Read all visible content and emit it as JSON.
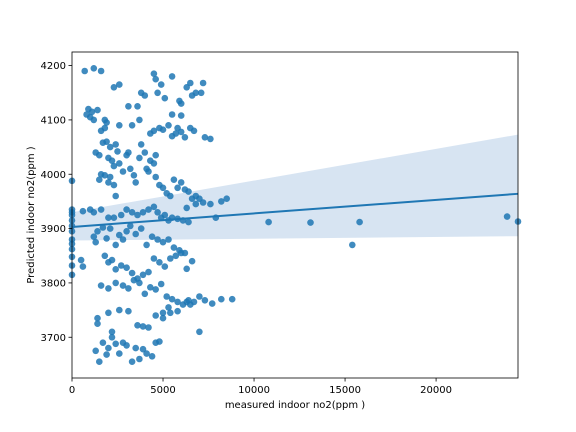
{
  "chart_data": {
    "type": "scatter",
    "xlabel": "measured indoor no2(ppm  )",
    "ylabel": "Predicted indoor no2(ppm  )",
    "xlim": [
      0,
      24500
    ],
    "ylim": [
      3625,
      4225
    ],
    "xticks": [
      0,
      5000,
      10000,
      15000,
      20000
    ],
    "yticks": [
      3700,
      3800,
      3900,
      4000,
      4100,
      4200
    ],
    "grid": false,
    "colors": {
      "points": "#1f77b4",
      "line": "#1f77b4",
      "band": "#c6d9ec"
    },
    "regression": {
      "x": [
        0,
        24500
      ],
      "y": [
        3903,
        3964
      ],
      "ci_upper": [
        3930,
        4073
      ],
      "ci_lower": [
        3878,
        3886
      ]
    },
    "points": [
      [
        0,
        3988
      ],
      [
        0,
        3930
      ],
      [
        0,
        3925
      ],
      [
        0,
        3915
      ],
      [
        0,
        3905
      ],
      [
        0,
        3895
      ],
      [
        0,
        3880
      ],
      [
        0,
        3872
      ],
      [
        0,
        3862
      ],
      [
        0,
        3848
      ],
      [
        0,
        3832
      ],
      [
        0,
        3815
      ],
      [
        0,
        3935
      ],
      [
        500,
        3842
      ],
      [
        600,
        3830
      ],
      [
        600,
        3932
      ],
      [
        700,
        4190
      ],
      [
        1200,
        4195
      ],
      [
        1600,
        4190
      ],
      [
        800,
        4110
      ],
      [
        900,
        4120
      ],
      [
        1000,
        4105
      ],
      [
        1100,
        4115
      ],
      [
        1200,
        4100
      ],
      [
        1300,
        4040
      ],
      [
        1400,
        4118
      ],
      [
        1500,
        4035
      ],
      [
        1600,
        4080
      ],
      [
        1700,
        4058
      ],
      [
        1800,
        4085
      ],
      [
        1900,
        4060
      ],
      [
        2000,
        4030
      ],
      [
        2100,
        4050
      ],
      [
        2200,
        4025
      ],
      [
        2300,
        4015
      ],
      [
        2400,
        4055
      ],
      [
        2500,
        4042
      ],
      [
        2600,
        4090
      ],
      [
        1800,
        4100
      ],
      [
        1900,
        4095
      ],
      [
        1500,
        3990
      ],
      [
        1600,
        4000
      ],
      [
        1800,
        3998
      ],
      [
        2000,
        3985
      ],
      [
        2100,
        3995
      ],
      [
        2300,
        3980
      ],
      [
        2400,
        3960
      ],
      [
        2600,
        4020
      ],
      [
        2800,
        4005
      ],
      [
        3000,
        4035
      ],
      [
        3100,
        4040
      ],
      [
        3200,
        4010
      ],
      [
        3400,
        3998
      ],
      [
        3500,
        3985
      ],
      [
        3700,
        4030
      ],
      [
        3800,
        4055
      ],
      [
        4000,
        4040
      ],
      [
        4100,
        4010
      ],
      [
        4200,
        4005
      ],
      [
        4300,
        4025
      ],
      [
        4500,
        4020
      ],
      [
        4600,
        4035
      ],
      [
        2300,
        4160
      ],
      [
        2600,
        4165
      ],
      [
        3100,
        4125
      ],
      [
        3600,
        4125
      ],
      [
        3800,
        4150
      ],
      [
        4000,
        4145
      ],
      [
        4500,
        4185
      ],
      [
        4600,
        4175
      ],
      [
        4700,
        4150
      ],
      [
        4900,
        4165
      ],
      [
        5100,
        4140
      ],
      [
        5500,
        4180
      ],
      [
        5900,
        4135
      ],
      [
        6000,
        4130
      ],
      [
        6300,
        4160
      ],
      [
        6500,
        4168
      ],
      [
        6600,
        4145
      ],
      [
        6800,
        4150
      ],
      [
        7100,
        4150
      ],
      [
        7200,
        4168
      ],
      [
        3300,
        4090
      ],
      [
        3700,
        4100
      ],
      [
        4300,
        4075
      ],
      [
        4500,
        4080
      ],
      [
        4800,
        4085
      ],
      [
        5000,
        4082
      ],
      [
        5300,
        4090
      ],
      [
        5500,
        4070
      ],
      [
        5700,
        4075
      ],
      [
        5800,
        4085
      ],
      [
        6000,
        4078
      ],
      [
        6200,
        4068
      ],
      [
        6500,
        4085
      ],
      [
        6700,
        4080
      ],
      [
        7300,
        4068
      ],
      [
        7600,
        4065
      ],
      [
        5500,
        4110
      ],
      [
        6000,
        4108
      ],
      [
        4600,
        3995
      ],
      [
        4800,
        3980
      ],
      [
        5000,
        3975
      ],
      [
        5200,
        3965
      ],
      [
        5400,
        3960
      ],
      [
        5600,
        3990
      ],
      [
        5800,
        3975
      ],
      [
        6000,
        3985
      ],
      [
        6200,
        3972
      ],
      [
        6400,
        3968
      ],
      [
        6600,
        3955
      ],
      [
        6800,
        3960
      ],
      [
        7000,
        3955
      ],
      [
        1000,
        3935
      ],
      [
        1200,
        3930
      ],
      [
        1600,
        3935
      ],
      [
        2000,
        3920
      ],
      [
        2300,
        3920
      ],
      [
        2700,
        3925
      ],
      [
        3000,
        3935
      ],
      [
        3300,
        3930
      ],
      [
        3600,
        3925
      ],
      [
        3900,
        3930
      ],
      [
        4200,
        3935
      ],
      [
        4500,
        3940
      ],
      [
        4700,
        3930
      ],
      [
        4900,
        3920
      ],
      [
        5100,
        3925
      ],
      [
        5300,
        3915
      ],
      [
        5500,
        3920
      ],
      [
        5800,
        3918
      ],
      [
        6100,
        3915
      ],
      [
        6400,
        3912
      ],
      [
        6800,
        3945
      ],
      [
        7200,
        3948
      ],
      [
        7600,
        3945
      ],
      [
        7900,
        3920
      ],
      [
        8200,
        3950
      ],
      [
        8500,
        3955
      ],
      [
        6300,
        3938
      ],
      [
        1200,
        3885
      ],
      [
        1300,
        3875
      ],
      [
        1400,
        3895
      ],
      [
        1700,
        3902
      ],
      [
        1900,
        3882
      ],
      [
        2100,
        3900
      ],
      [
        2400,
        3870
      ],
      [
        2600,
        3888
      ],
      [
        2800,
        3880
      ],
      [
        3000,
        3895
      ],
      [
        3200,
        3905
      ],
      [
        3500,
        3890
      ],
      [
        3800,
        3900
      ],
      [
        4100,
        3870
      ],
      [
        4400,
        3885
      ],
      [
        4700,
        3880
      ],
      [
        5000,
        3875
      ],
      [
        5300,
        3880
      ],
      [
        5600,
        3865
      ],
      [
        5900,
        3860
      ],
      [
        6200,
        3855
      ],
      [
        1800,
        3850
      ],
      [
        2000,
        3838
      ],
      [
        2200,
        3842
      ],
      [
        2400,
        3825
      ],
      [
        2700,
        3832
      ],
      [
        3000,
        3828
      ],
      [
        3300,
        3818
      ],
      [
        3600,
        3808
      ],
      [
        3900,
        3815
      ],
      [
        4200,
        3820
      ],
      [
        4500,
        3845
      ],
      [
        4800,
        3838
      ],
      [
        5100,
        3830
      ],
      [
        5400,
        3845
      ],
      [
        5700,
        3850
      ],
      [
        6000,
        3855
      ],
      [
        6300,
        3826
      ],
      [
        6600,
        3840
      ],
      [
        1600,
        3795
      ],
      [
        2000,
        3790
      ],
      [
        2400,
        3800
      ],
      [
        2800,
        3795
      ],
      [
        3100,
        3790
      ],
      [
        3400,
        3805
      ],
      [
        3700,
        3800
      ],
      [
        4000,
        3780
      ],
      [
        4300,
        3792
      ],
      [
        4600,
        3788
      ],
      [
        4900,
        3798
      ],
      [
        5200,
        3775
      ],
      [
        5500,
        3770
      ],
      [
        5800,
        3765
      ],
      [
        6100,
        3760
      ],
      [
        6400,
        3768
      ],
      [
        6700,
        3765
      ],
      [
        7000,
        3775
      ],
      [
        7300,
        3768
      ],
      [
        7700,
        3762
      ],
      [
        8200,
        3770
      ],
      [
        8800,
        3770
      ],
      [
        1400,
        3735
      ],
      [
        1400,
        3725
      ],
      [
        2000,
        3745
      ],
      [
        2600,
        3750
      ],
      [
        3100,
        3748
      ],
      [
        3600,
        3722
      ],
      [
        3900,
        3720
      ],
      [
        4200,
        3718
      ],
      [
        4600,
        3740
      ],
      [
        5000,
        3735
      ],
      [
        5400,
        3745
      ],
      [
        5800,
        3748
      ],
      [
        6300,
        3765
      ],
      [
        6500,
        3760
      ],
      [
        7000,
        3710
      ],
      [
        1300,
        3675
      ],
      [
        1700,
        3690
      ],
      [
        1900,
        3668
      ],
      [
        2000,
        3680
      ],
      [
        2200,
        3700
      ],
      [
        2400,
        3688
      ],
      [
        2600,
        3670
      ],
      [
        2800,
        3690
      ],
      [
        3000,
        3685
      ],
      [
        3300,
        3655
      ],
      [
        3500,
        3680
      ],
      [
        3700,
        3660
      ],
      [
        3900,
        3678
      ],
      [
        4100,
        3670
      ],
      [
        4400,
        3665
      ],
      [
        4600,
        3690
      ],
      [
        4800,
        3692
      ],
      [
        5300,
        3755
      ],
      [
        5000,
        3745
      ],
      [
        1500,
        3655
      ],
      [
        2200,
        3710
      ],
      [
        10800,
        3912
      ],
      [
        13100,
        3911
      ],
      [
        15800,
        3912
      ],
      [
        15400,
        3870
      ],
      [
        23900,
        3922
      ],
      [
        24500,
        3913
      ]
    ]
  }
}
